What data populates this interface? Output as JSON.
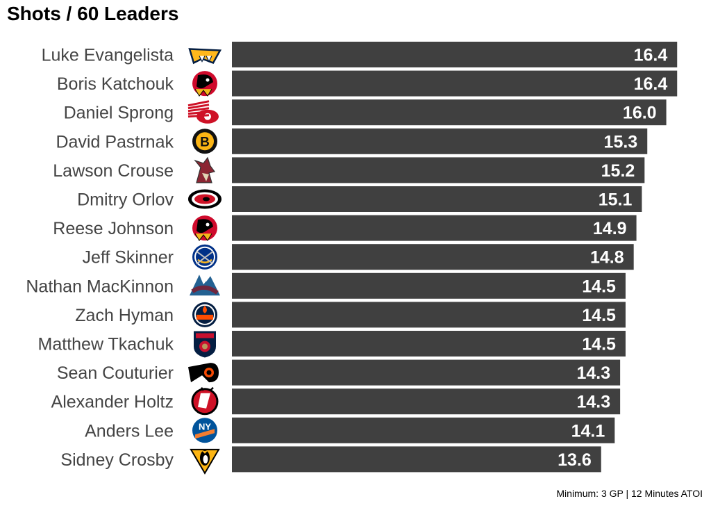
{
  "title": "Shots / 60 Leaders",
  "caption": "Minimum: 3 GP | 12 Minutes ATOI",
  "chart_data": {
    "type": "bar",
    "orientation": "horizontal",
    "title": "Shots / 60 Leaders",
    "xlabel": "",
    "ylabel": "",
    "grid": false,
    "bar_color": "#404040",
    "label_color": "#ffffff",
    "categories": [
      "Luke Evangelista",
      "Boris Katchouk",
      "Daniel Sprong",
      "David Pastrnak",
      "Lawson Crouse",
      "Dmitry Orlov",
      "Reese Johnson",
      "Jeff Skinner",
      "Nathan MacKinnon",
      "Zach Hyman",
      "Matthew Tkachuk",
      "Sean Couturier",
      "Alexander Holtz",
      "Anders Lee",
      "Sidney Crosby"
    ],
    "values": [
      16.4,
      16.4,
      16.0,
      15.3,
      15.2,
      15.1,
      14.9,
      14.8,
      14.5,
      14.5,
      14.5,
      14.3,
      14.3,
      14.1,
      13.6
    ],
    "value_labels": [
      "16.4",
      "16.4",
      "16.0",
      "15.3",
      "15.2",
      "15.1",
      "14.9",
      "14.8",
      "14.5",
      "14.5",
      "14.5",
      "14.3",
      "14.3",
      "14.1",
      "13.6"
    ],
    "logos": [
      {
        "name": "predators-logo-icon",
        "kind": "predators",
        "c1": "#ffb81c",
        "c2": "#041e42"
      },
      {
        "name": "blackhawks-logo-icon",
        "kind": "hawk",
        "c1": "#cf0a2c",
        "c2": "#000000"
      },
      {
        "name": "red-wings-logo-icon",
        "kind": "wing",
        "c1": "#ce1126",
        "c2": "#ffffff"
      },
      {
        "name": "bruins-logo-icon",
        "kind": "letter",
        "letter": "B",
        "c1": "#fcb514",
        "c2": "#111111"
      },
      {
        "name": "coyotes-logo-icon",
        "kind": "coyote",
        "c1": "#8c2633",
        "c2": "#e2d6b5"
      },
      {
        "name": "hurricanes-logo-icon",
        "kind": "canes",
        "c1": "#ce1126",
        "c2": "#000000"
      },
      {
        "name": "blackhawks-logo-icon",
        "kind": "hawk",
        "c1": "#cf0a2c",
        "c2": "#000000"
      },
      {
        "name": "sabres-logo-icon",
        "kind": "sabres",
        "c1": "#003087",
        "c2": "#ffb81c"
      },
      {
        "name": "avalanche-logo-icon",
        "kind": "avs",
        "c1": "#6f263d",
        "c2": "#236192"
      },
      {
        "name": "oilers-logo-icon",
        "kind": "oilers",
        "c1": "#041e42",
        "c2": "#ff4c00"
      },
      {
        "name": "panthers-logo-icon",
        "kind": "panthers",
        "c1": "#041e42",
        "c2": "#c8102e"
      },
      {
        "name": "flyers-logo-icon",
        "kind": "flyers",
        "c1": "#f74902",
        "c2": "#000000"
      },
      {
        "name": "devils-logo-icon",
        "kind": "devils",
        "c1": "#ce1126",
        "c2": "#000000"
      },
      {
        "name": "islanders-logo-icon",
        "kind": "isles",
        "c1": "#00539b",
        "c2": "#f47d30"
      },
      {
        "name": "penguins-logo-icon",
        "kind": "pens",
        "c1": "#000000",
        "c2": "#fcb514"
      }
    ]
  }
}
